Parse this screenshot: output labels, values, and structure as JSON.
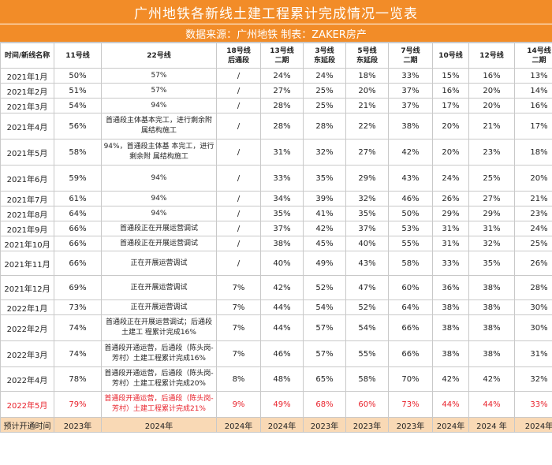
{
  "title": "广州地铁各新线土建工程累计完成情况一览表",
  "subtitle": "数据来源：广州地铁  制表：ZAKER房产",
  "colors": {
    "header_bg": "#F28C28",
    "footer_bg": "#F9D9B5",
    "highlight_text": "#e8202a"
  },
  "columns": [
    "时间/新线名称",
    "11号线",
    "22号线",
    "18号线\n后通段",
    "13号线\n二期",
    "3号线\n东延段",
    "5号线\n东延段",
    "7号线\n二期",
    "10号线",
    "12号线",
    "14号线\n二期"
  ],
  "rows": [
    [
      "2021年1月",
      "50%",
      "57%",
      "/",
      "24%",
      "24%",
      "18%",
      "33%",
      "15%",
      "16%",
      "13%"
    ],
    [
      "2021年2月",
      "51%",
      "57%",
      "/",
      "27%",
      "25%",
      "20%",
      "37%",
      "16%",
      "20%",
      "14%"
    ],
    [
      "2021年3月",
      "54%",
      "94%",
      "/",
      "28%",
      "25%",
      "21%",
      "37%",
      "17%",
      "20%",
      "16%"
    ],
    [
      "2021年4月",
      "56%",
      "首通段主体基本完工，进行剩余附属结构施工",
      "/",
      "28%",
      "28%",
      "22%",
      "38%",
      "20%",
      "21%",
      "17%"
    ],
    [
      "2021年5月",
      "58%",
      "94%，首通段主体基 本完工，进行剩余附 属结构施工",
      "/",
      "31%",
      "32%",
      "27%",
      "42%",
      "20%",
      "23%",
      "18%"
    ],
    [
      "2021年6月",
      "59%",
      "94%",
      "/",
      "33%",
      "35%",
      "29%",
      "43%",
      "24%",
      "25%",
      "20%"
    ],
    [
      "2021年7月",
      "61%",
      "94%",
      "/",
      "34%",
      "39%",
      "32%",
      "46%",
      "26%",
      "27%",
      "21%"
    ],
    [
      "2021年8月",
      "64%",
      "94%",
      "/",
      "35%",
      "41%",
      "35%",
      "50%",
      "29%",
      "29%",
      "23%"
    ],
    [
      "2021年9月",
      "66%",
      "首通段正在开展运营调试",
      "/",
      "37%",
      "42%",
      "37%",
      "53%",
      "31%",
      "31%",
      "24%"
    ],
    [
      "2021年10月",
      "66%",
      "首通段正在开展运营调试",
      "/",
      "38%",
      "45%",
      "40%",
      "55%",
      "31%",
      "32%",
      "25%"
    ],
    [
      "2021年11月",
      "66%",
      "正在开展运营调试",
      "/",
      "40%",
      "49%",
      "43%",
      "58%",
      "33%",
      "35%",
      "26%"
    ],
    [
      "2021年12月",
      "69%",
      "正在开展运营调试",
      "7%",
      "42%",
      "52%",
      "47%",
      "60%",
      "36%",
      "38%",
      "28%"
    ],
    [
      "2022年1月",
      "73%",
      "正在开展运营调试",
      "7%",
      "44%",
      "54%",
      "52%",
      "64%",
      "38%",
      "38%",
      "30%"
    ],
    [
      "2022年2月",
      "74%",
      "首通段正在开展运营调试；后通段土建工 程累计完成16%",
      "7%",
      "44%",
      "57%",
      "54%",
      "66%",
      "38%",
      "38%",
      "30%"
    ],
    [
      "2022年3月",
      "74%",
      "首通段开通运营，后通段（陈头岗-芳村）土建工程累计完成16%",
      "7%",
      "46%",
      "57%",
      "55%",
      "66%",
      "38%",
      "38%",
      "31%"
    ],
    [
      "2022年4月",
      "78%",
      "首通段开通运营，后通段（陈头岗-芳村）土建工程累计完成20%",
      "8%",
      "48%",
      "65%",
      "58%",
      "70%",
      "42%",
      "42%",
      "32%"
    ],
    [
      "2022年5月",
      "79%",
      "首通段开通运营，后通段（陈头岗-芳村）土建工程累计完成21%",
      "9%",
      "49%",
      "68%",
      "60%",
      "73%",
      "44%",
      "44%",
      "33%"
    ]
  ],
  "footer": [
    "预计开通时间",
    "2023年",
    "2024年",
    "2024年",
    "2024年",
    "2023年",
    "2023年",
    "2023年",
    "2024年",
    "2024 年",
    "2024年"
  ]
}
